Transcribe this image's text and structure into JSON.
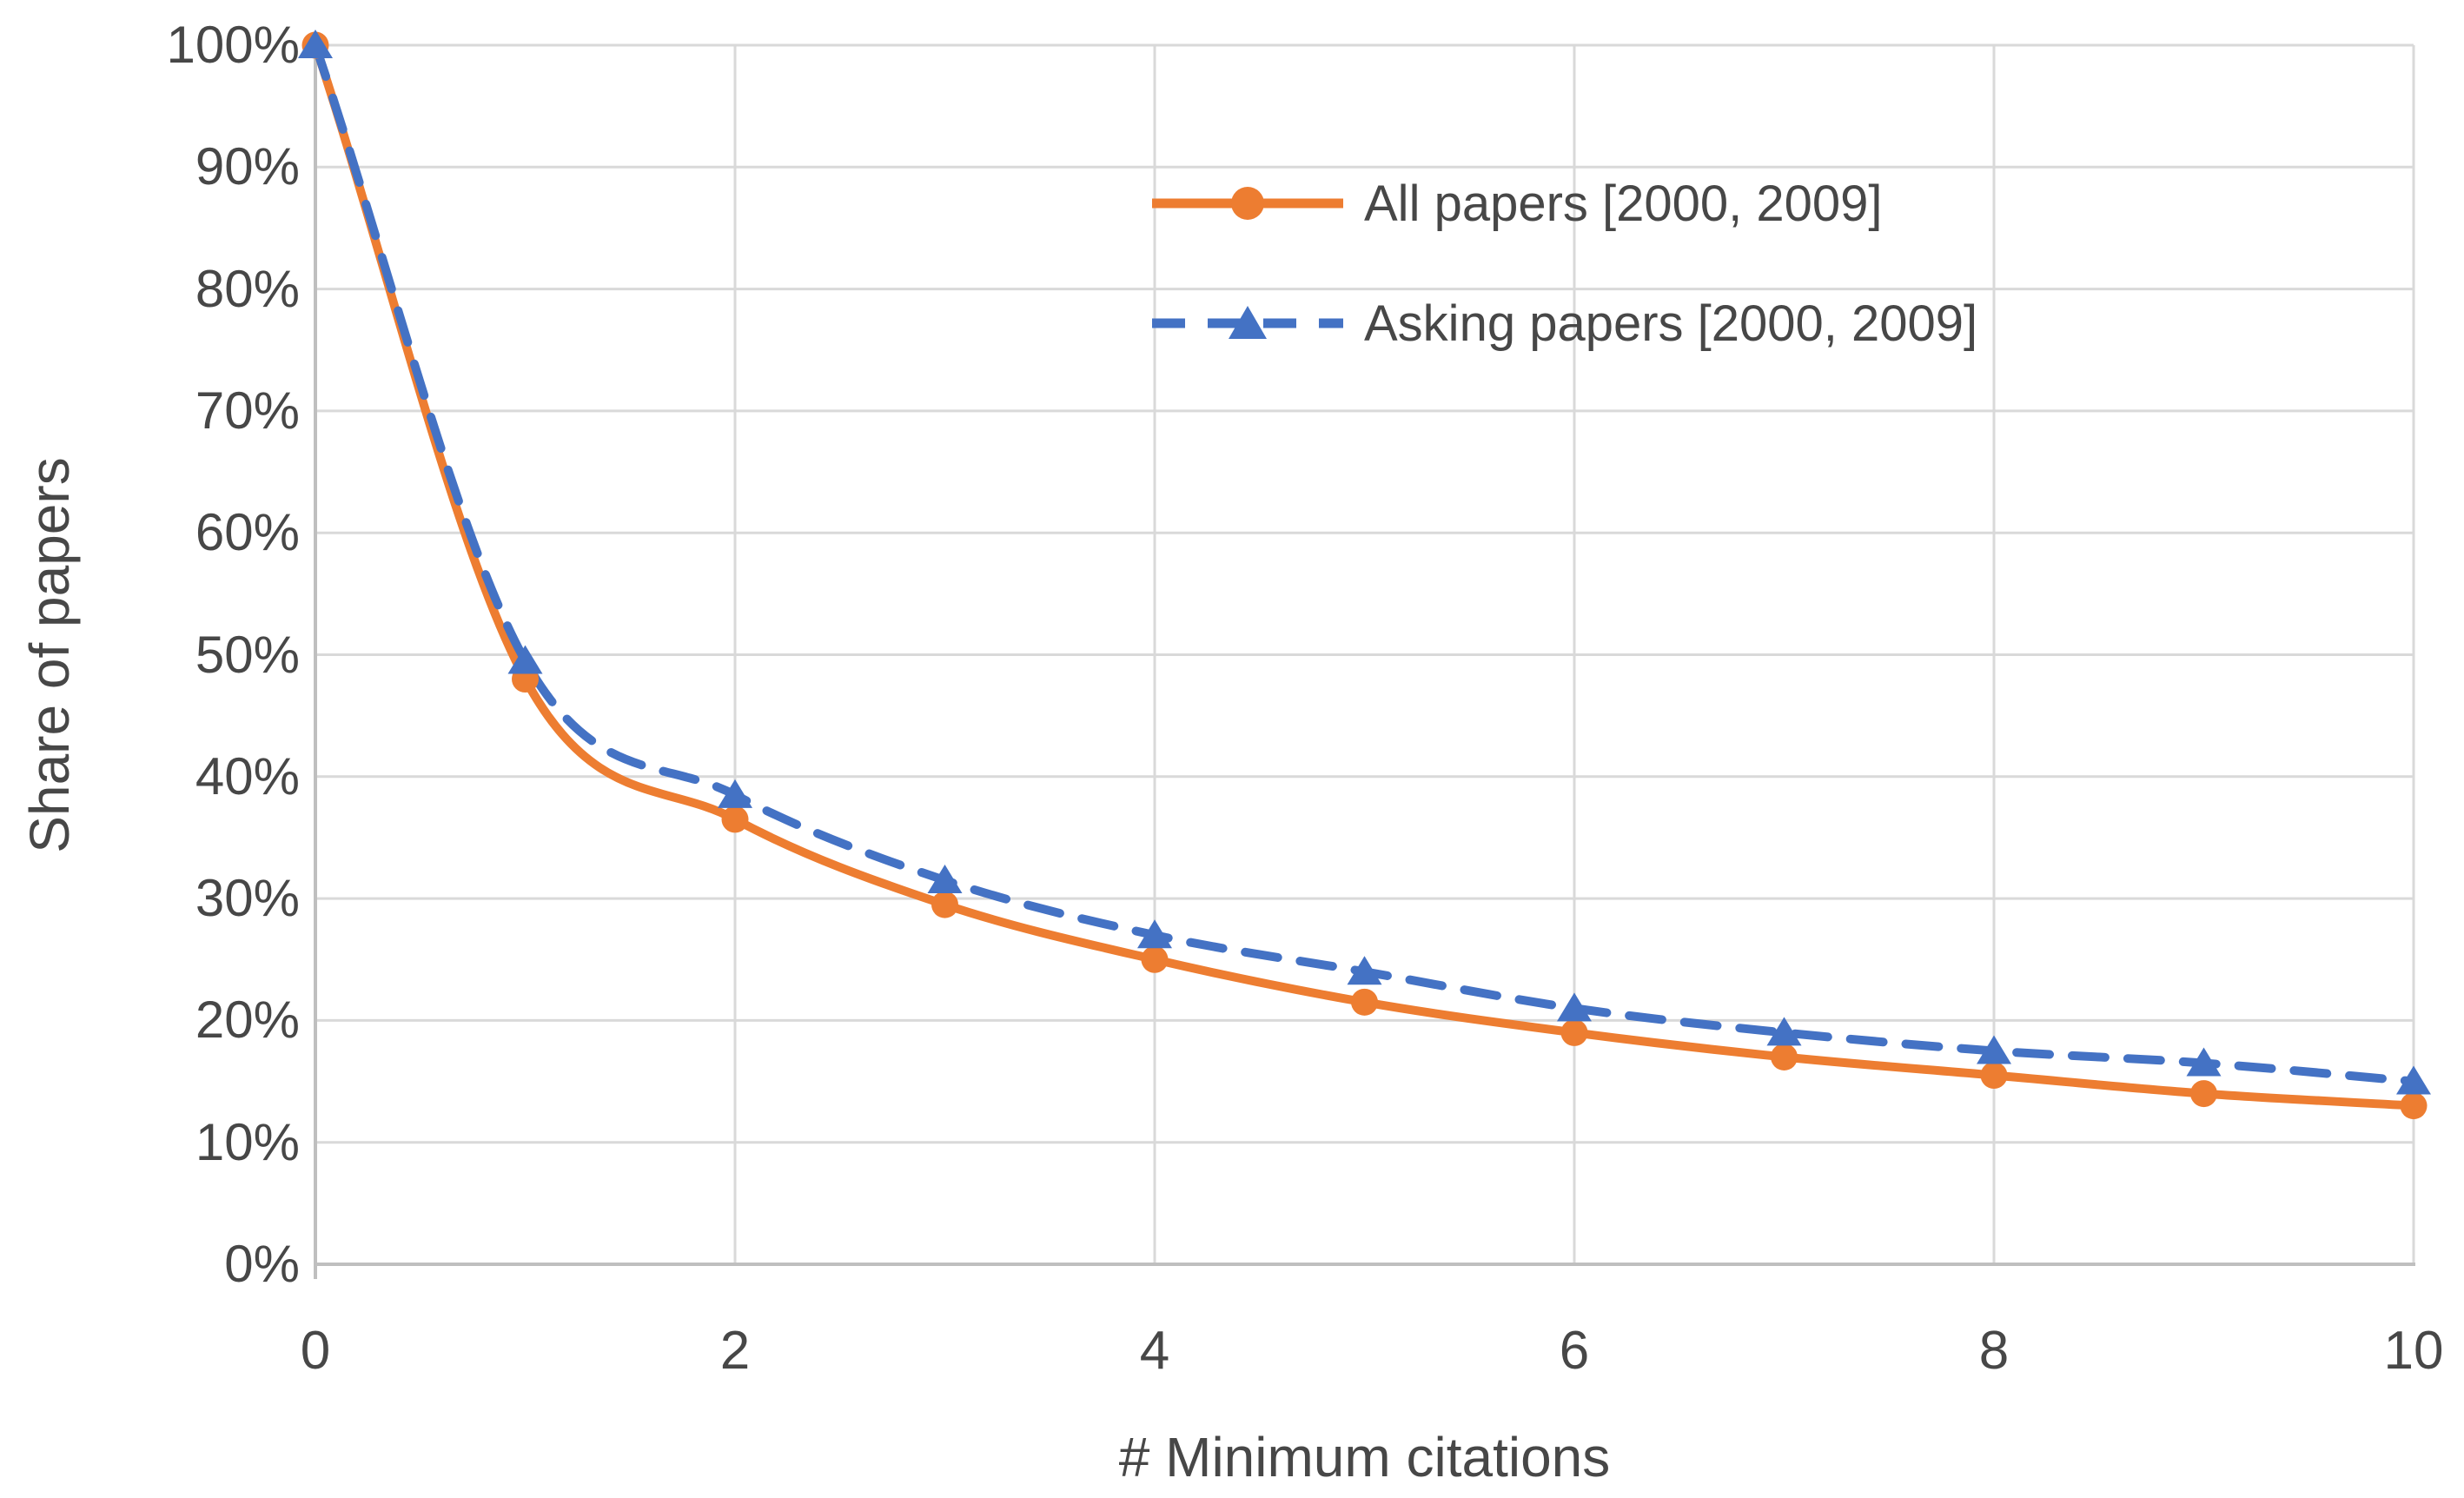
{
  "chart_data": {
    "type": "line",
    "title": "",
    "xlabel": "# Minimum citations",
    "ylabel": "Share of papers",
    "x": [
      0,
      1,
      2,
      3,
      4,
      5,
      6,
      7,
      8,
      9,
      10
    ],
    "series": [
      {
        "name": "All papers [2000, 2009]",
        "values": [
          100,
          48,
          36.5,
          29.5,
          25,
          21.5,
          19,
          17,
          15.5,
          14,
          13
        ],
        "color": "#ED7D31",
        "line_style": "solid",
        "marker": "circle"
      },
      {
        "name": "Asking papers [2000, 2009]",
        "values": [
          100,
          49.5,
          38.5,
          31.5,
          27,
          24,
          21,
          19,
          17.5,
          16.5,
          15
        ],
        "color": "#4472C4",
        "line_style": "dashed",
        "marker": "triangle"
      }
    ],
    "ylim": [
      0,
      100
    ],
    "xlim": [
      0,
      10
    ],
    "ytick_values": [
      0,
      10,
      20,
      30,
      40,
      50,
      60,
      70,
      80,
      90,
      100
    ],
    "ytick_labels": [
      "0%",
      "10%",
      "20%",
      "30%",
      "40%",
      "50%",
      "60%",
      "70%",
      "80%",
      "90%",
      "100%"
    ],
    "xtick_values": [
      0,
      2,
      4,
      6,
      8,
      10
    ],
    "xtick_labels": [
      "0",
      "2",
      "4",
      "6",
      "8",
      "10"
    ],
    "grid": true,
    "legend_position": "inside-top-right",
    "gridline_color": "#D9D9D9",
    "axis_line_color": "#BFBFBF",
    "text_color": "#474747"
  }
}
